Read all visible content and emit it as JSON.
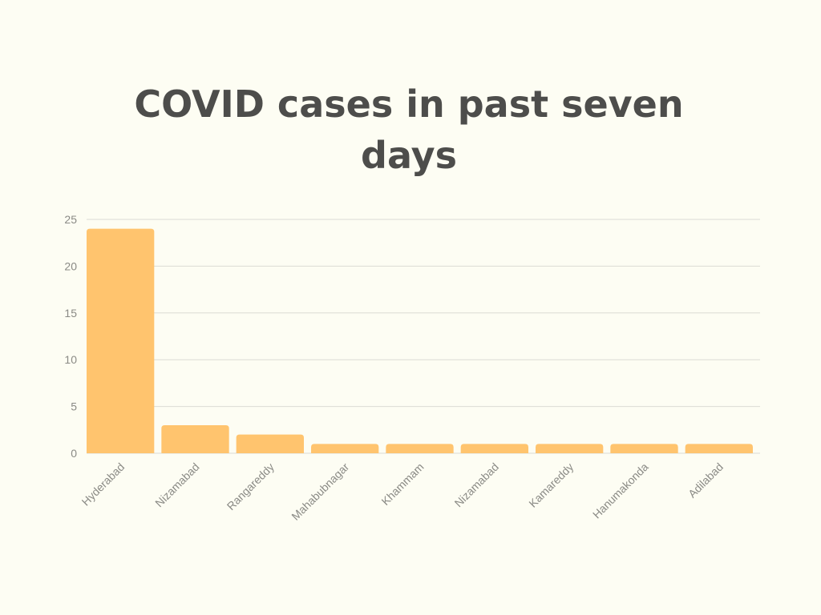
{
  "chart_data": {
    "type": "bar",
    "title": "COVID cases in past seven days",
    "categories": [
      "Hyderabad",
      "Nizamabad",
      "Rangareddy",
      "Mahabubnagar",
      "Khammam",
      "Nizamabad",
      "Kamareddy",
      "Hanumakonda",
      "Adilabad"
    ],
    "values": [
      24,
      3,
      2,
      1,
      1,
      1,
      1,
      1,
      1
    ],
    "ylim": [
      0,
      25
    ],
    "yticks": [
      0,
      5,
      10,
      15,
      20,
      25
    ],
    "grid": true,
    "legend": "none",
    "bar_color": "#ffc46e",
    "background_color": "#fdfdf3",
    "grid_color": "#dcdcd4",
    "text_color": "#4d4d4b"
  }
}
